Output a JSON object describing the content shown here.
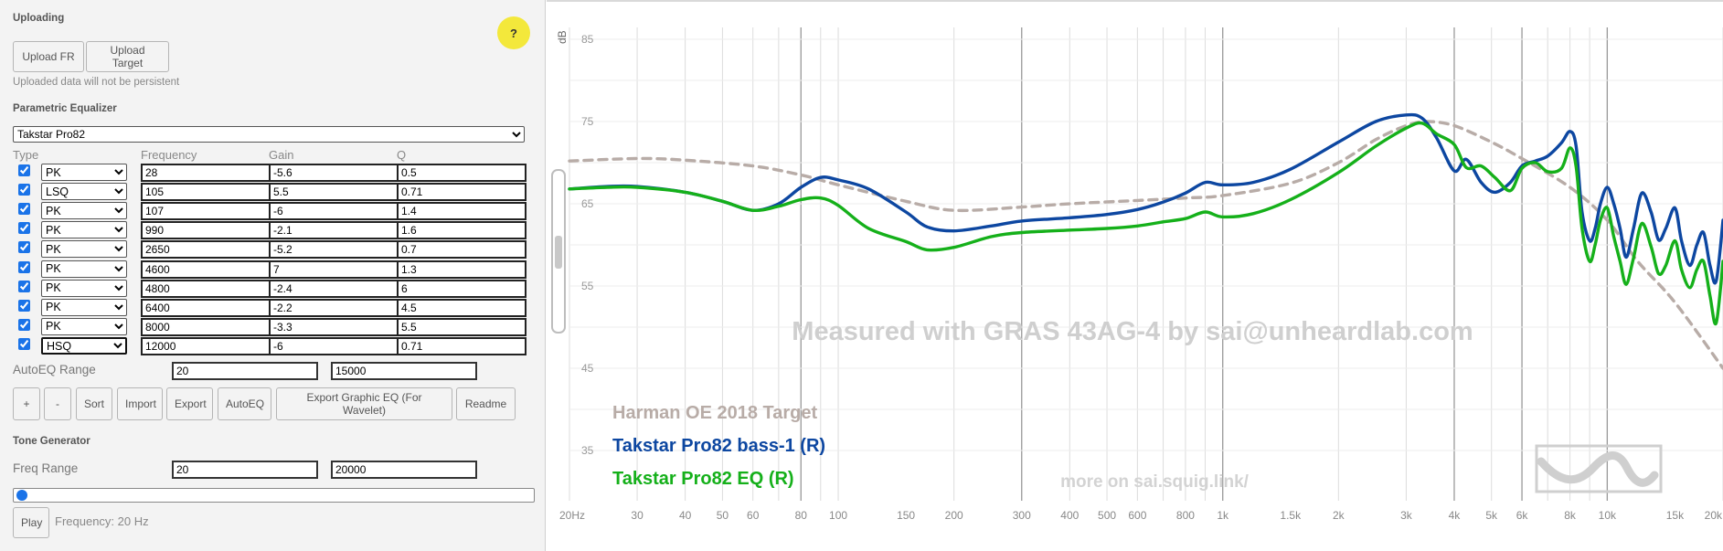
{
  "uploading": {
    "title": "Uploading",
    "upload_fr": "Upload FR",
    "upload_target": "Upload Target",
    "note": "Uploaded data will not be persistent",
    "help": "?"
  },
  "peq": {
    "title": "Parametric Equalizer",
    "preset": "Takstar Pro82",
    "headers": {
      "type": "Type",
      "frequency": "Frequency",
      "gain": "Gain",
      "q": "Q"
    },
    "filters": [
      {
        "enabled": true,
        "type": "PK",
        "freq": "28",
        "gain": "-5.6",
        "q": "0.5"
      },
      {
        "enabled": true,
        "type": "LSQ",
        "freq": "105",
        "gain": "5.5",
        "q": "0.71"
      },
      {
        "enabled": true,
        "type": "PK",
        "freq": "107",
        "gain": "-6",
        "q": "1.4"
      },
      {
        "enabled": true,
        "type": "PK",
        "freq": "990",
        "gain": "-2.1",
        "q": "1.6"
      },
      {
        "enabled": true,
        "type": "PK",
        "freq": "2650",
        "gain": "-5.2",
        "q": "0.7"
      },
      {
        "enabled": true,
        "type": "PK",
        "freq": "4600",
        "gain": "7",
        "q": "1.3"
      },
      {
        "enabled": true,
        "type": "PK",
        "freq": "4800",
        "gain": "-2.4",
        "q": "6"
      },
      {
        "enabled": true,
        "type": "PK",
        "freq": "6400",
        "gain": "-2.2",
        "q": "4.5"
      },
      {
        "enabled": true,
        "type": "PK",
        "freq": "8000",
        "gain": "-3.3",
        "q": "5.5"
      },
      {
        "enabled": true,
        "type": "HSQ",
        "freq": "12000",
        "gain": "-6",
        "q": "0.71"
      }
    ],
    "autoeq_label": "AutoEQ Range",
    "autoeq_min": "20",
    "autoeq_max": "15000",
    "buttons": [
      "+",
      "-",
      "Sort",
      "Import",
      "Export",
      "AutoEQ",
      "Export Graphic EQ (For Wavelet)",
      "Readme"
    ]
  },
  "tone": {
    "title": "Tone Generator",
    "range_label": "Freq Range",
    "min": "20",
    "max": "20000",
    "slider_fraction": 0.0,
    "play": "Play",
    "frequency_text": "Frequency: 20 Hz"
  },
  "graph": {
    "watermark": "Measured with GRAS 43AG-4 by sai@unheardlab.com",
    "footer_link": "more on sai.squig.link/",
    "colors": {
      "target": "#b8aca7",
      "bass": "#0d47a1",
      "eq": "#15b01a",
      "grid": "#dcdcdc",
      "major_grid": "#9a9a9a"
    }
  },
  "chart_data": {
    "type": "line",
    "ylabel": "dB",
    "xscale": "log",
    "xlim": [
      20,
      20000
    ],
    "ylim": [
      30,
      87
    ],
    "y_ticks": [
      35,
      45,
      55,
      65,
      75,
      85
    ],
    "x_ticks": [
      {
        "value": 20,
        "label": "20Hz"
      },
      {
        "value": 30,
        "label": "30"
      },
      {
        "value": 40,
        "label": "40"
      },
      {
        "value": 50,
        "label": "50"
      },
      {
        "value": 60,
        "label": "60"
      },
      {
        "value": 80,
        "label": "80"
      },
      {
        "value": 100,
        "label": "100"
      },
      {
        "value": 150,
        "label": "150"
      },
      {
        "value": 200,
        "label": "200"
      },
      {
        "value": 300,
        "label": "300"
      },
      {
        "value": 400,
        "label": "400"
      },
      {
        "value": 500,
        "label": "500"
      },
      {
        "value": 600,
        "label": "600"
      },
      {
        "value": 800,
        "label": "800"
      },
      {
        "value": 1000,
        "label": "1k"
      },
      {
        "value": 1500,
        "label": "1.5k"
      },
      {
        "value": 2000,
        "label": "2k"
      },
      {
        "value": 3000,
        "label": "3k"
      },
      {
        "value": 4000,
        "label": "4k"
      },
      {
        "value": 5000,
        "label": "5k"
      },
      {
        "value": 6000,
        "label": "6k"
      },
      {
        "value": 8000,
        "label": "8k"
      },
      {
        "value": 10000,
        "label": "10k"
      },
      {
        "value": 15000,
        "label": "15k"
      },
      {
        "value": 20000,
        "label": "20k"
      }
    ],
    "major_x": [
      80,
      300,
      1000,
      4000,
      6000,
      10000
    ],
    "grid": true,
    "legend_position": "bottom-left",
    "series": [
      {
        "name": "Harman OE 2018 Target",
        "key": "target",
        "dashed": true,
        "points": [
          [
            20,
            70.2
          ],
          [
            30,
            70.5
          ],
          [
            40,
            70.3
          ],
          [
            60,
            69.6
          ],
          [
            80,
            68.5
          ],
          [
            100,
            67.3
          ],
          [
            150,
            65.3
          ],
          [
            200,
            64.2
          ],
          [
            300,
            64.6
          ],
          [
            400,
            65
          ],
          [
            600,
            65.4
          ],
          [
            800,
            65.7
          ],
          [
            1000,
            66
          ],
          [
            1500,
            67.5
          ],
          [
            2000,
            70
          ],
          [
            2500,
            72.8
          ],
          [
            3000,
            74.5
          ],
          [
            3400,
            75
          ],
          [
            4000,
            74.5
          ],
          [
            5000,
            72.5
          ],
          [
            6000,
            70.5
          ],
          [
            8000,
            67
          ],
          [
            10000,
            63
          ],
          [
            12000,
            58
          ],
          [
            15000,
            53
          ],
          [
            20000,
            45
          ]
        ]
      },
      {
        "name": "Takstar Pro82 bass-1 (R)",
        "key": "bass",
        "dashed": false,
        "points": [
          [
            20,
            66.8
          ],
          [
            25,
            67.1
          ],
          [
            30,
            67.1
          ],
          [
            40,
            66.4
          ],
          [
            50,
            65.3
          ],
          [
            60,
            64.2
          ],
          [
            70,
            65
          ],
          [
            80,
            67
          ],
          [
            90,
            68.2
          ],
          [
            100,
            67.9
          ],
          [
            120,
            66.8
          ],
          [
            150,
            64
          ],
          [
            170,
            62.2
          ],
          [
            200,
            61.7
          ],
          [
            250,
            62.3
          ],
          [
            300,
            62.9
          ],
          [
            400,
            63.3
          ],
          [
            500,
            63.7
          ],
          [
            600,
            64.3
          ],
          [
            700,
            65.2
          ],
          [
            800,
            66.3
          ],
          [
            900,
            67.6
          ],
          [
            1000,
            67.3
          ],
          [
            1200,
            67.6
          ],
          [
            1500,
            69.2
          ],
          [
            2000,
            72.5
          ],
          [
            2500,
            75
          ],
          [
            3000,
            75.8
          ],
          [
            3300,
            75.4
          ],
          [
            3600,
            73
          ],
          [
            4000,
            69
          ],
          [
            4300,
            70.4
          ],
          [
            4700,
            67.6
          ],
          [
            5100,
            66.4
          ],
          [
            5600,
            67.6
          ],
          [
            6000,
            69.6
          ],
          [
            6500,
            70.2
          ],
          [
            7000,
            70.8
          ],
          [
            7600,
            72.4
          ],
          [
            8000,
            73.8
          ],
          [
            8300,
            72
          ],
          [
            8600,
            64
          ],
          [
            9000,
            60.5
          ],
          [
            9300,
            62
          ],
          [
            9600,
            65
          ],
          [
            10000,
            67
          ],
          [
            10400,
            65
          ],
          [
            10800,
            62
          ],
          [
            11200,
            58.5
          ],
          [
            11700,
            62
          ],
          [
            12300,
            66.3
          ],
          [
            13000,
            64
          ],
          [
            13600,
            60.6
          ],
          [
            14200,
            62
          ],
          [
            15000,
            64.5
          ],
          [
            15600,
            60.5
          ],
          [
            16400,
            57.5
          ],
          [
            17100,
            60
          ],
          [
            17800,
            61.5
          ],
          [
            18500,
            57.5
          ],
          [
            19200,
            55.6
          ],
          [
            20000,
            63
          ]
        ]
      },
      {
        "name": "Takstar Pro82 EQ (R)",
        "key": "eq",
        "dashed": false,
        "points": [
          [
            20,
            66.8
          ],
          [
            25,
            67
          ],
          [
            30,
            67
          ],
          [
            40,
            66.4
          ],
          [
            50,
            65.3
          ],
          [
            60,
            64.2
          ],
          [
            70,
            64.7
          ],
          [
            80,
            65.5
          ],
          [
            90,
            65.7
          ],
          [
            100,
            64.8
          ],
          [
            120,
            62
          ],
          [
            150,
            60.4
          ],
          [
            170,
            59.4
          ],
          [
            200,
            59.7
          ],
          [
            250,
            61
          ],
          [
            300,
            61.5
          ],
          [
            400,
            61.8
          ],
          [
            500,
            62
          ],
          [
            600,
            62.3
          ],
          [
            700,
            62.8
          ],
          [
            800,
            63.2
          ],
          [
            900,
            64
          ],
          [
            1000,
            63.4
          ],
          [
            1200,
            63.8
          ],
          [
            1500,
            65.5
          ],
          [
            2000,
            68.8
          ],
          [
            2500,
            72
          ],
          [
            3000,
            74.2
          ],
          [
            3300,
            74.8
          ],
          [
            3600,
            73.5
          ],
          [
            4000,
            72.2
          ],
          [
            4300,
            69.4
          ],
          [
            4700,
            69.6
          ],
          [
            5100,
            68.2
          ],
          [
            5600,
            66.6
          ],
          [
            6000,
            69.3
          ],
          [
            6500,
            70
          ],
          [
            7000,
            68.9
          ],
          [
            7600,
            69.3
          ],
          [
            8000,
            71.8
          ],
          [
            8300,
            69.5
          ],
          [
            8600,
            62
          ],
          [
            9000,
            58
          ],
          [
            9300,
            60
          ],
          [
            9600,
            63
          ],
          [
            10000,
            64.5
          ],
          [
            10400,
            61
          ],
          [
            10800,
            58
          ],
          [
            11200,
            55.2
          ],
          [
            11700,
            58.4
          ],
          [
            12300,
            62.6
          ],
          [
            13000,
            59.8
          ],
          [
            13600,
            56.5
          ],
          [
            14200,
            57.5
          ],
          [
            15000,
            60.5
          ],
          [
            15600,
            57
          ],
          [
            16400,
            54.8
          ],
          [
            17100,
            57
          ],
          [
            17800,
            58
          ],
          [
            18500,
            53.8
          ],
          [
            19200,
            50.5
          ],
          [
            20000,
            58
          ]
        ]
      }
    ]
  }
}
